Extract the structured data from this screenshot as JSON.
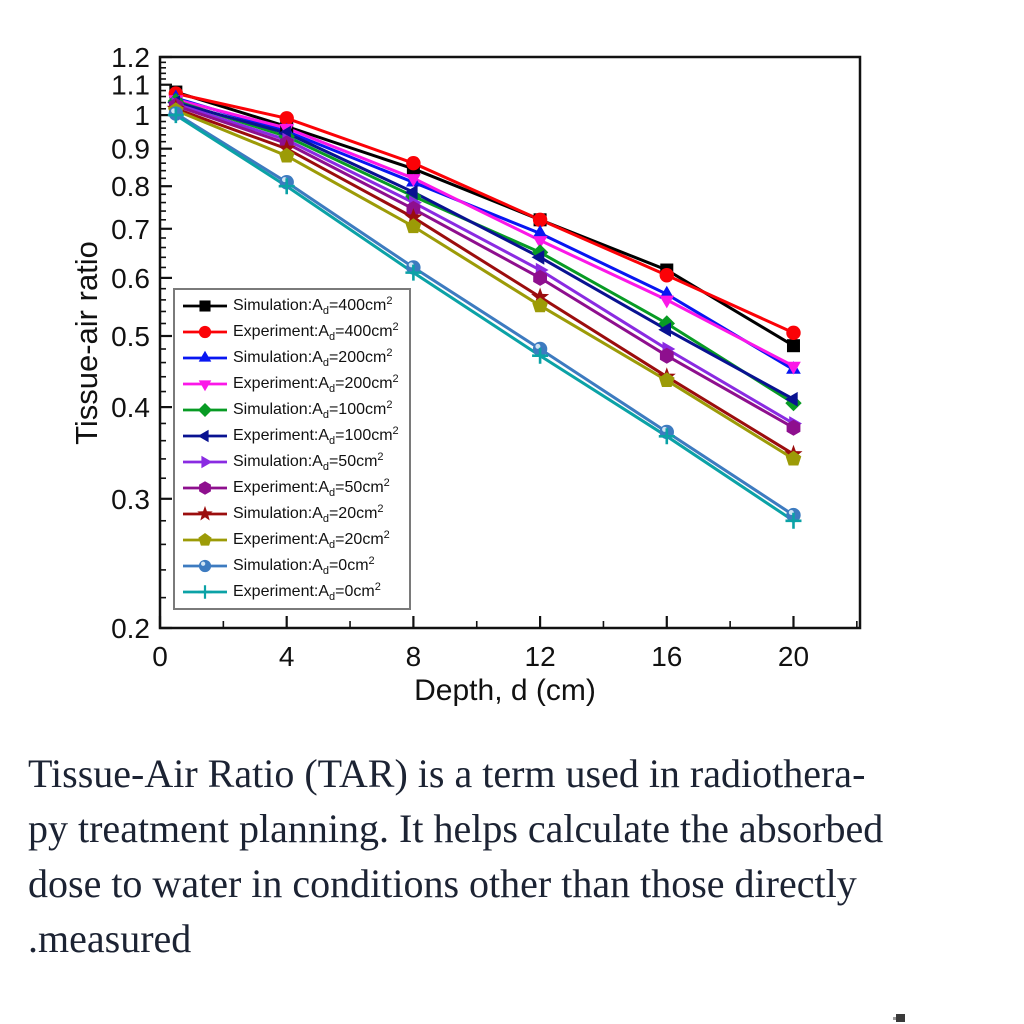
{
  "chart_data": {
    "type": "line",
    "title": "",
    "xlabel": "Depth, d (cm)",
    "ylabel": "Tissue-air ratio",
    "grid": false,
    "legend_position": "inside lower-left",
    "x": [
      0.5,
      4,
      8,
      12,
      16,
      20
    ],
    "xlim": [
      0,
      22.1
    ],
    "ylim": [
      0.2,
      1.2
    ],
    "yscale": "log",
    "x_ticks": {
      "values": [
        0,
        4,
        8,
        12,
        16,
        20
      ],
      "labels": [
        "0",
        "4",
        "8",
        "12",
        "16",
        "20"
      ],
      "minor": [
        2,
        6,
        10,
        14,
        18,
        22
      ]
    },
    "y_ticks": {
      "values": [
        1.2,
        1.1,
        1.0,
        0.9,
        0.8,
        0.7,
        0.6,
        0.5,
        0.4,
        0.3,
        0.2
      ],
      "labels": [
        "1.2",
        "1.1",
        "1",
        "0.9",
        "0.8",
        "0.7",
        "0.6",
        "0.5",
        "0.4",
        "0.3",
        "0.2"
      ],
      "minor_step": 0.02
    },
    "series": [
      {
        "label": {
          "pre": "Simulation:A",
          "sub": "d",
          "mid": "=400cm",
          "sup": "2"
        },
        "color": "#000000",
        "marker": "square",
        "values": [
          1.075,
          0.965,
          0.845,
          0.72,
          0.615,
          0.485
        ]
      },
      {
        "label": {
          "pre": "Experiment:A",
          "sub": "d",
          "mid": "=400cm",
          "sup": "2"
        },
        "color": "#fb0207",
        "marker": "circle",
        "values": [
          1.07,
          0.99,
          0.86,
          0.72,
          0.605,
          0.505
        ]
      },
      {
        "label": {
          "pre": "Simulation:A",
          "sub": "d",
          "mid": "=200cm",
          "sup": "2"
        },
        "color": "#0816f2",
        "marker": "triangle-up",
        "values": [
          1.055,
          0.95,
          0.81,
          0.69,
          0.57,
          0.45
        ]
      },
      {
        "label": {
          "pre": "Experiment:A",
          "sub": "d",
          "mid": "=200cm",
          "sup": "2"
        },
        "color": "#fb17e8",
        "marker": "triangle-down",
        "values": [
          1.05,
          0.96,
          0.82,
          0.675,
          0.56,
          0.455
        ]
      },
      {
        "label": {
          "pre": "Simulation:A",
          "sub": "d",
          "mid": "=100cm",
          "sup": "2"
        },
        "color": "#089b24",
        "marker": "diamond",
        "values": [
          1.045,
          0.935,
          0.775,
          0.65,
          0.52,
          0.405
        ]
      },
      {
        "label": {
          "pre": "Experiment:A",
          "sub": "d",
          "mid": "=100cm",
          "sup": "2"
        },
        "color": "#091291",
        "marker": "triangle-left",
        "values": [
          1.04,
          0.945,
          0.785,
          0.64,
          0.51,
          0.41
        ]
      },
      {
        "label": {
          "pre": "Simulation:A",
          "sub": "d",
          "mid": "=50cm",
          "sup": "2"
        },
        "color": "#8a2be2",
        "marker": "triangle-right",
        "values": [
          1.035,
          0.925,
          0.76,
          0.615,
          0.48,
          0.38
        ]
      },
      {
        "label": {
          "pre": "Experiment:A",
          "sub": "d",
          "mid": "=50cm",
          "sup": "2"
        },
        "color": "#8e0f8e",
        "marker": "hexagon",
        "values": [
          1.03,
          0.915,
          0.745,
          0.6,
          0.47,
          0.375
        ]
      },
      {
        "label": {
          "pre": "Simulation:A",
          "sub": "d",
          "mid": "=20cm",
          "sup": "2"
        },
        "color": "#9b0d0d",
        "marker": "star",
        "values": [
          1.02,
          0.9,
          0.725,
          0.565,
          0.44,
          0.345
        ]
      },
      {
        "label": {
          "pre": "Experiment:A",
          "sub": "d",
          "mid": "=20cm",
          "sup": "2"
        },
        "color": "#9c9b07",
        "marker": "pentagon",
        "values": [
          1.015,
          0.88,
          0.705,
          0.55,
          0.435,
          0.34
        ]
      },
      {
        "label": {
          "pre": "Simulation:A",
          "sub": "d",
          "mid": "=0cm",
          "sup": "2"
        },
        "color": "#3d7bc0",
        "marker": "sphere",
        "values": [
          1.005,
          0.81,
          0.62,
          0.48,
          0.37,
          0.285
        ]
      },
      {
        "label": {
          "pre": "Experiment:A",
          "sub": "d",
          "mid": "=0cm",
          "sup": "2"
        },
        "color": "#0ba2a6",
        "marker": "plus",
        "values": [
          1.0,
          0.8,
          0.61,
          0.47,
          0.365,
          0.28
        ]
      }
    ]
  },
  "caption": {
    "lines": [
      "Tissue-Air Ratio (TAR) is a term used in radiothera-",
      "py treatment planning. It helps calculate the absorbed",
      "dose to water in conditions other than those directly",
      ".measured"
    ]
  },
  "colors": {
    "frame": "#111111",
    "tick_text": "#111111",
    "caption_text": "#1c2333",
    "legend_border": "#7a7a7a"
  }
}
